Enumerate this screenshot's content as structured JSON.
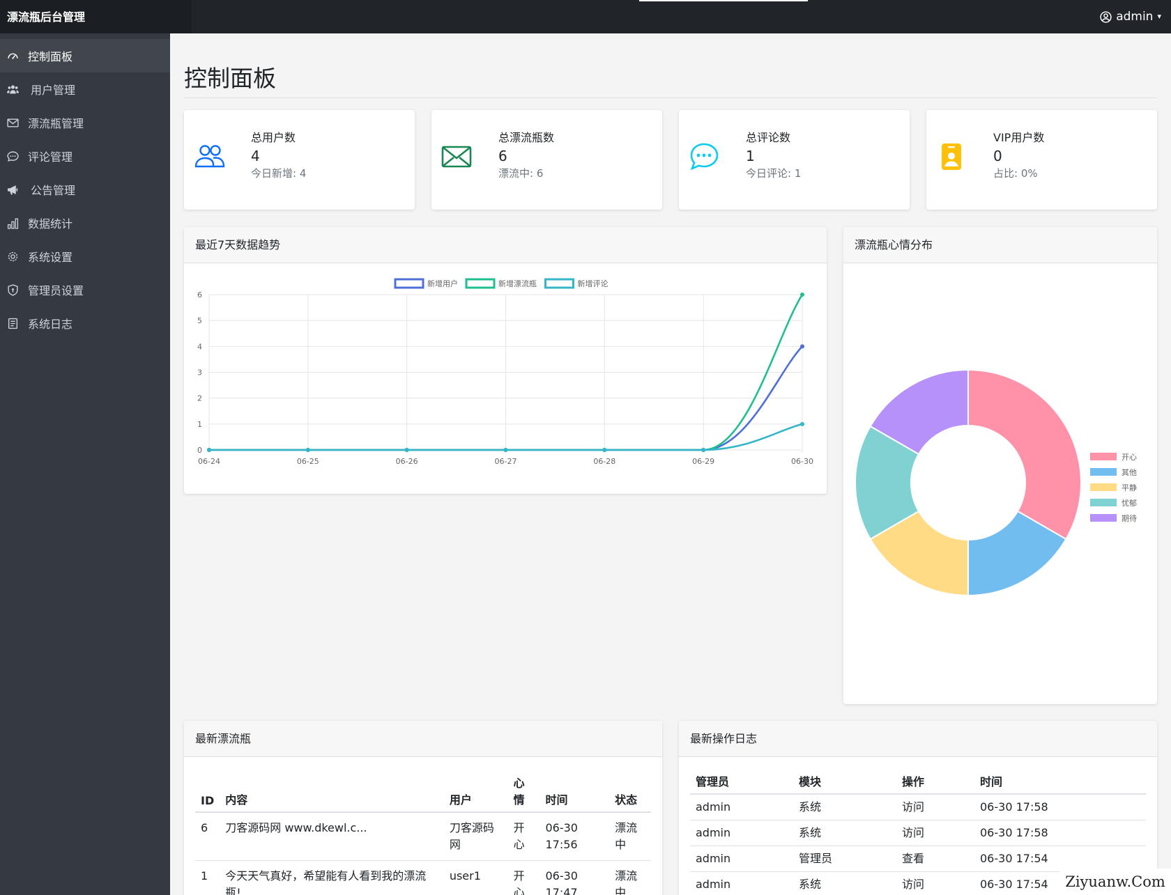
{
  "app": {
    "brand": "漂流瓶后台管理",
    "user": "admin"
  },
  "sidebar": {
    "items": [
      {
        "label": "控制面板",
        "icon": "speedometer-icon",
        "active": true
      },
      {
        "label": "用户管理",
        "icon": "users-icon"
      },
      {
        "label": "漂流瓶管理",
        "icon": "envelope-icon"
      },
      {
        "label": "评论管理",
        "icon": "chat-icon"
      },
      {
        "label": "公告管理",
        "icon": "megaphone-icon"
      },
      {
        "label": "数据统计",
        "icon": "bar-chart-icon"
      },
      {
        "label": "系统设置",
        "icon": "gear-icon"
      },
      {
        "label": "管理员设置",
        "icon": "shield-icon"
      },
      {
        "label": "系统日志",
        "icon": "journal-icon"
      }
    ]
  },
  "page": {
    "title": "控制面板"
  },
  "stats": [
    {
      "label": "总用户数",
      "value": "4",
      "sub": "今日新增: 4",
      "icon": "people-icon",
      "color": "#0d6efd"
    },
    {
      "label": "总漂流瓶数",
      "value": "6",
      "sub": "漂流中: 6",
      "icon": "envelope-icon",
      "color": "#198754"
    },
    {
      "label": "总评论数",
      "value": "1",
      "sub": "今日评论: 1",
      "icon": "chat-dots-icon",
      "color": "#0dcaf0"
    },
    {
      "label": "VIP用户数",
      "value": "0",
      "sub": "占比: 0%",
      "icon": "badge-icon",
      "color": "#ffc107"
    }
  ],
  "trend_panel": {
    "title": "最近7天数据趋势"
  },
  "mood_panel": {
    "title": "漂流瓶心情分布"
  },
  "chart_data": [
    {
      "type": "line",
      "x": [
        "06-24",
        "06-25",
        "06-26",
        "06-27",
        "06-28",
        "06-29",
        "06-30"
      ],
      "ylim": [
        0,
        6
      ],
      "yticks": [
        0,
        1,
        2,
        3,
        4,
        5,
        6
      ],
      "grid": true,
      "legend": "top-center",
      "series": [
        {
          "name": "新增用户",
          "values": [
            0,
            0,
            0,
            0,
            0,
            0,
            4
          ],
          "color": "#4e6fd8"
        },
        {
          "name": "新增漂流瓶",
          "values": [
            0,
            0,
            0,
            0,
            0,
            0,
            6
          ],
          "color": "#1fbf8f"
        },
        {
          "name": "新增评论",
          "values": [
            0,
            0,
            0,
            0,
            0,
            0,
            1
          ],
          "color": "#36b5c8"
        }
      ]
    },
    {
      "type": "pie",
      "donut": true,
      "legend": "right",
      "labels": [
        "开心",
        "其他",
        "平静",
        "忧郁",
        "期待"
      ],
      "values": [
        2,
        1,
        1,
        1,
        1
      ],
      "colors": [
        "#ff91a8",
        "#72bdf0",
        "#ffdb86",
        "#80d2d2",
        "#b591f9"
      ]
    }
  ],
  "bottles_panel": {
    "title": "最新漂流瓶",
    "columns": [
      "ID",
      "内容",
      "用户",
      "心情",
      "时间",
      "状态"
    ],
    "rows": [
      [
        "6",
        "刀客源码网 www.dkewl.c...",
        "刀客源码网",
        "开心",
        "06-30 17:56",
        "漂流中"
      ],
      [
        "1",
        "今天天气真好，希望能有人看到我的漂流瓶!",
        "user1",
        "开心",
        "06-30 17:47",
        "漂流中"
      ]
    ]
  },
  "logs_panel": {
    "title": "最新操作日志",
    "columns": [
      "管理员",
      "模块",
      "操作",
      "时间"
    ],
    "rows": [
      [
        "admin",
        "系统",
        "访问",
        "06-30 17:58"
      ],
      [
        "admin",
        "系统",
        "访问",
        "06-30 17:58"
      ],
      [
        "admin",
        "管理员",
        "查看",
        "06-30 17:54"
      ],
      [
        "admin",
        "系统",
        "访问",
        "06-30 17:54"
      ]
    ]
  },
  "watermark": "Ziyuanw.Com"
}
